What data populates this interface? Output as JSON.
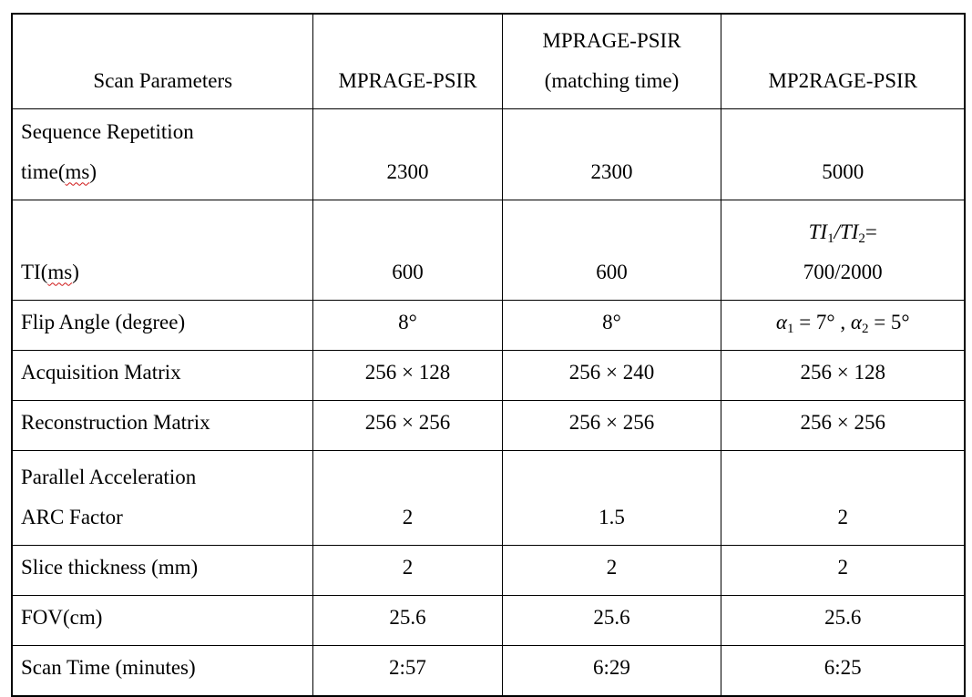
{
  "page": {
    "background": "#ffffff",
    "text_color": "#000000"
  },
  "table": {
    "border_color": "#000000",
    "spell_underline_color": "#cf1616",
    "header": {
      "scan_parameters": "Scan Parameters",
      "col2": "MPRAGE-PSIR",
      "col3_line1": "MPRAGE-PSIR",
      "col3_line2": "(matching time)",
      "col4": "MP2RAGE-PSIR"
    },
    "rows": [
      {
        "label_line1": "Sequence Repetition",
        "label_line2_pre": "time(",
        "label_line2_spell": "ms",
        "label_line2_post": ")",
        "v1": "2300",
        "v2": "2300",
        "v3": "5000"
      },
      {
        "label_pre": "TI(",
        "label_spell": "ms",
        "label_post": ")",
        "v1": "600",
        "v2": "600",
        "v3_parts": {
          "ti1": "TI",
          "sub1": "1",
          "ti2": "/TI",
          "sub2": "2",
          "eq": "=",
          "line2": "700/2000"
        }
      },
      {
        "label": "Flip Angle (degree)",
        "v1": "8°",
        "v2": "8°",
        "v3_parts": {
          "alpha1": "α",
          "sub1": "1",
          "mid1": " = 7° , ",
          "alpha2": "α",
          "sub2": "2",
          "mid2": " = 5°"
        }
      },
      {
        "label": "Acquisition Matrix",
        "v1": "256 × 128",
        "v2": "256 × 240",
        "v3": "256 × 128"
      },
      {
        "label": "Reconstruction Matrix",
        "v1": "256 × 256",
        "v2": "256 × 256",
        "v3": "256 × 256"
      },
      {
        "label_line1": "Parallel Acceleration",
        "label_line2": "ARC Factor",
        "v1": "2",
        "v2": "1.5",
        "v3": "2"
      },
      {
        "label": "Slice thickness (mm)",
        "v1": "2",
        "v2": "2",
        "v3": "2"
      },
      {
        "label": "FOV(cm)",
        "v1": "25.6",
        "v2": "25.6",
        "v3": "25.6"
      },
      {
        "label": "Scan Time (minutes)",
        "v1": "2:57",
        "v2": "6:29",
        "v3": "6:25"
      }
    ]
  }
}
